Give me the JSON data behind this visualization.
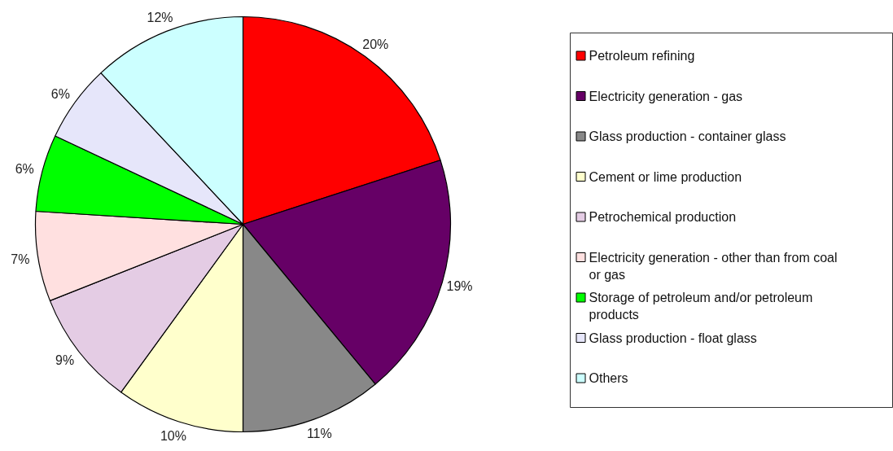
{
  "chart_data": {
    "type": "pie",
    "categories": [
      "Petroleum refining",
      "Electricity generation - gas",
      "Glass production - container glass",
      "Cement or lime production",
      "Petrochemical production",
      "Electricity generation - other than from coal or gas",
      "Storage of petroleum and/or petroleum products",
      "Glass production - float glass",
      "Others"
    ],
    "values": [
      20,
      19,
      11,
      10,
      9,
      7,
      6,
      6,
      12
    ],
    "colors": [
      "#ff0000",
      "#660066",
      "#888888",
      "#ffffcc",
      "#e4cce4",
      "#ffe0e0",
      "#00ff00",
      "#e6e6fa",
      "#ccffff"
    ],
    "value_labels": [
      "20%",
      "19%",
      "11%",
      "10%",
      "9%",
      "7%",
      "6%",
      "6%",
      "12%"
    ],
    "legend": "right"
  }
}
